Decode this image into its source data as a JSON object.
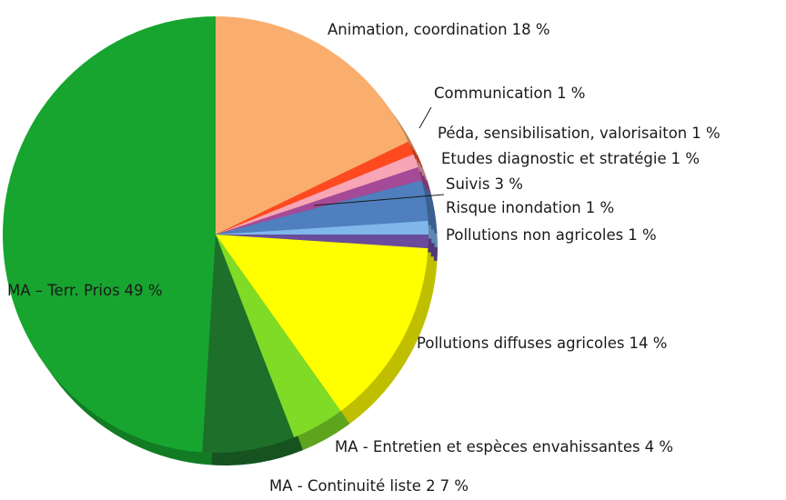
{
  "chart_data": {
    "type": "pie",
    "categories": [
      "Animation, coordination",
      "Communication",
      "Péda, sensibilisation, valorisaiton",
      "Etudes diagnostic et stratégie",
      "Suivis",
      "Risque inondation",
      "Pollutions non agricoles",
      "Pollutions diffuses agricoles",
      "MA - Entretien et espèces envahissantes",
      "MA - Continuité liste 2",
      "MA – Terr. Prios"
    ],
    "values": [
      18,
      1,
      1,
      1,
      3,
      1,
      1,
      14,
      4,
      7,
      49
    ],
    "value_labels": [
      "18 %",
      "1 %",
      "1 %",
      "1 %",
      "3 %",
      "1 %",
      "1 %",
      "14 %",
      "4 %",
      "7 %",
      "49 %"
    ],
    "colors": [
      "#f9ae6e",
      "#ff4a1f",
      "#f8a5b5",
      "#a54a96",
      "#4f7fbf",
      "#7fb7ea",
      "#6a4c9c",
      "#ffff00",
      "#7fdb26",
      "#1d6f2a",
      "#17a52f"
    ]
  }
}
